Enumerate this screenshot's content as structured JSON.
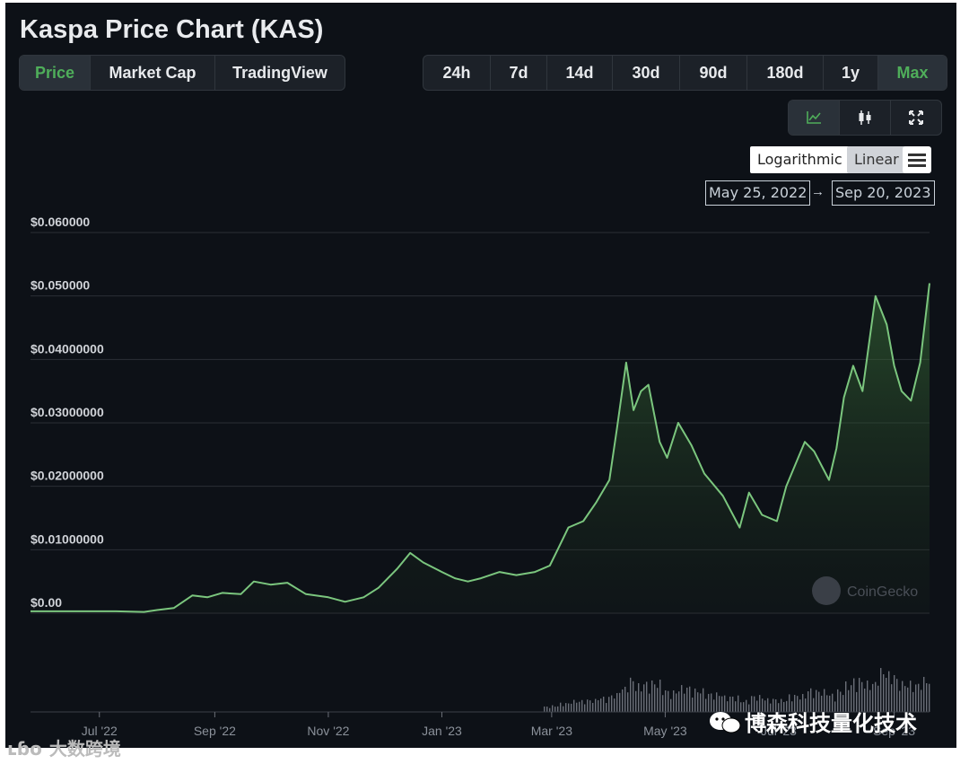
{
  "page": {
    "title": "Kaspa Price Chart (KAS)"
  },
  "data_tabs": [
    {
      "label": "Price",
      "active": true
    },
    {
      "label": "Market Cap",
      "active": false
    },
    {
      "label": "TradingView",
      "active": false
    }
  ],
  "range_tabs": [
    {
      "label": "24h",
      "active": false
    },
    {
      "label": "7d",
      "active": false
    },
    {
      "label": "14d",
      "active": false
    },
    {
      "label": "30d",
      "active": false
    },
    {
      "label": "90d",
      "active": false
    },
    {
      "label": "180d",
      "active": false
    },
    {
      "label": "1y",
      "active": false
    },
    {
      "label": "Max",
      "active": true
    }
  ],
  "chart_type_icons": [
    "line-chart-icon",
    "candlestick-icon",
    "fullscreen-icon"
  ],
  "scale": {
    "log_label": "Logarithmic",
    "linear_label": "Linear",
    "active": "Linear",
    "menu_icon": "hamburger-menu-icon"
  },
  "date_range": {
    "from": "May 25, 2022",
    "to": "Sep 20, 2023",
    "arrow": "→"
  },
  "branding": {
    "attribution": "CoinGecko"
  },
  "watermarks": {
    "main": "博森科技量化技术",
    "corner": "大数跨境",
    "corner_logo": "ʟɓo"
  },
  "colors": {
    "accent": "#4fae5a",
    "line": "#7bc67e",
    "background": "#0d1117",
    "grid": "#2b2f36"
  },
  "chart_data": {
    "type": "area",
    "title": "Kaspa Price Chart (KAS)",
    "ylabel": "",
    "ylim": [
      0,
      0.06
    ],
    "y_tick_values": [
      0,
      0.01,
      0.02,
      0.03,
      0.04,
      0.05,
      0.06
    ],
    "y_tick_labels": [
      "$0.00",
      "$0.01000000",
      "$0.02000000",
      "$0.03000000",
      "$0.04000000",
      "$0.050000",
      "$0.060000"
    ],
    "x_tick_labels": [
      "Jul '22",
      "Sep '22",
      "Nov '22",
      "Jan '23",
      "Mar '23",
      "May '23",
      "Jul '23",
      "Sep '23"
    ],
    "x_tick_dates": [
      "2022-07-01",
      "2022-09-01",
      "2022-11-01",
      "2023-01-01",
      "2023-03-01",
      "2023-05-01",
      "2023-07-01",
      "2023-09-01"
    ],
    "grid": true,
    "volume_bars_shown": true,
    "series": [
      {
        "points": [
          [
            "2022-05-25",
            0.0003
          ],
          [
            "2022-06-15",
            0.0003
          ],
          [
            "2022-07-10",
            0.0003
          ],
          [
            "2022-07-25",
            0.0002
          ],
          [
            "2022-08-01",
            0.0005
          ],
          [
            "2022-08-10",
            0.0008
          ],
          [
            "2022-08-20",
            0.0028
          ],
          [
            "2022-08-28",
            0.0025
          ],
          [
            "2022-09-05",
            0.0032
          ],
          [
            "2022-09-15",
            0.003
          ],
          [
            "2022-09-22",
            0.005
          ],
          [
            "2022-10-01",
            0.0045
          ],
          [
            "2022-10-10",
            0.0048
          ],
          [
            "2022-10-20",
            0.003
          ],
          [
            "2022-11-01",
            0.0025
          ],
          [
            "2022-11-10",
            0.0018
          ],
          [
            "2022-11-20",
            0.0025
          ],
          [
            "2022-11-28",
            0.004
          ],
          [
            "2022-12-08",
            0.007
          ],
          [
            "2022-12-15",
            0.0095
          ],
          [
            "2022-12-22",
            0.008
          ],
          [
            "2023-01-01",
            0.0065
          ],
          [
            "2023-01-08",
            0.0055
          ],
          [
            "2023-01-15",
            0.005
          ],
          [
            "2023-01-22",
            0.0055
          ],
          [
            "2023-02-01",
            0.0065
          ],
          [
            "2023-02-10",
            0.006
          ],
          [
            "2023-02-20",
            0.0065
          ],
          [
            "2023-02-28",
            0.0075
          ],
          [
            "2023-03-05",
            0.0105
          ],
          [
            "2023-03-10",
            0.0135
          ],
          [
            "2023-03-18",
            0.0145
          ],
          [
            "2023-03-25",
            0.0175
          ],
          [
            "2023-04-01",
            0.021
          ],
          [
            "2023-04-05",
            0.029
          ],
          [
            "2023-04-10",
            0.0395
          ],
          [
            "2023-04-14",
            0.032
          ],
          [
            "2023-04-18",
            0.035
          ],
          [
            "2023-04-22",
            0.036
          ],
          [
            "2023-04-28",
            0.027
          ],
          [
            "2023-05-02",
            0.0245
          ],
          [
            "2023-05-08",
            0.03
          ],
          [
            "2023-05-15",
            0.0265
          ],
          [
            "2023-05-22",
            0.022
          ],
          [
            "2023-06-01",
            0.0185
          ],
          [
            "2023-06-10",
            0.0135
          ],
          [
            "2023-06-15",
            0.019
          ],
          [
            "2023-06-22",
            0.0155
          ],
          [
            "2023-06-30",
            0.0145
          ],
          [
            "2023-07-05",
            0.02
          ],
          [
            "2023-07-15",
            0.027
          ],
          [
            "2023-07-20",
            0.0255
          ],
          [
            "2023-07-28",
            0.021
          ],
          [
            "2023-08-01",
            0.026
          ],
          [
            "2023-08-05",
            0.034
          ],
          [
            "2023-08-10",
            0.039
          ],
          [
            "2023-08-15",
            0.035
          ],
          [
            "2023-08-22",
            0.05
          ],
          [
            "2023-08-28",
            0.0455
          ],
          [
            "2023-09-01",
            0.039
          ],
          [
            "2023-09-05",
            0.035
          ],
          [
            "2023-09-10",
            0.0335
          ],
          [
            "2023-09-15",
            0.0395
          ],
          [
            "2023-09-20",
            0.052
          ]
        ]
      }
    ]
  }
}
